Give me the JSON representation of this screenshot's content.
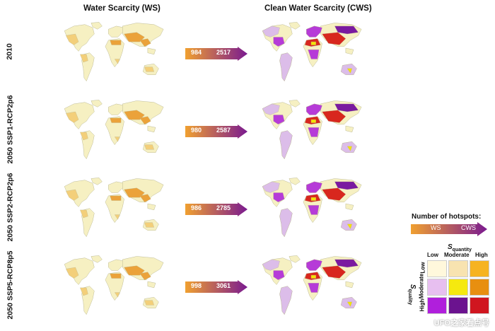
{
  "headers": {
    "ws": "Water Scarcity (WS)",
    "cws": "Clean Water Scarcity (CWS)"
  },
  "rows": [
    {
      "label": "2010",
      "ws_count": "984",
      "cws_count": "2517"
    },
    {
      "label": "2050 SSP1-RCP2p6",
      "ws_count": "980",
      "cws_count": "2587"
    },
    {
      "label": "2050 SSP2-RCP2p6",
      "ws_count": "986",
      "cws_count": "2785"
    },
    {
      "label": "2050 SSP5-RCP8p5",
      "ws_count": "998",
      "cws_count": "3061"
    }
  ],
  "legend": {
    "title": "Number of hotspots:",
    "bar_left": "WS",
    "bar_right": "CWS",
    "squantity": "S",
    "squantity_sub": "quantity",
    "squality": "S",
    "squality_sub": "quality",
    "col_labels": [
      "Low",
      "Moderate",
      "High"
    ],
    "row_labels": [
      "Low",
      "Moderate",
      "High"
    ],
    "matrix_colors": [
      [
        "#fff8dc",
        "#f8e3b0",
        "#f6b321"
      ],
      [
        "#e7bff0",
        "#f5e90f",
        "#e88f10"
      ],
      [
        "#b01fdc",
        "#6b138f",
        "#d0161f"
      ]
    ]
  },
  "colors": {
    "land": "#f6f0c2",
    "orange": "#eba23a",
    "lightorange": "#f3cf7a",
    "lavender": "#dcbde9",
    "purple": "#b63bd8",
    "darkpurple": "#7a1aa0",
    "red": "#d8271e",
    "yellow": "#f4e400"
  },
  "watermark": "UFO之家看点号"
}
